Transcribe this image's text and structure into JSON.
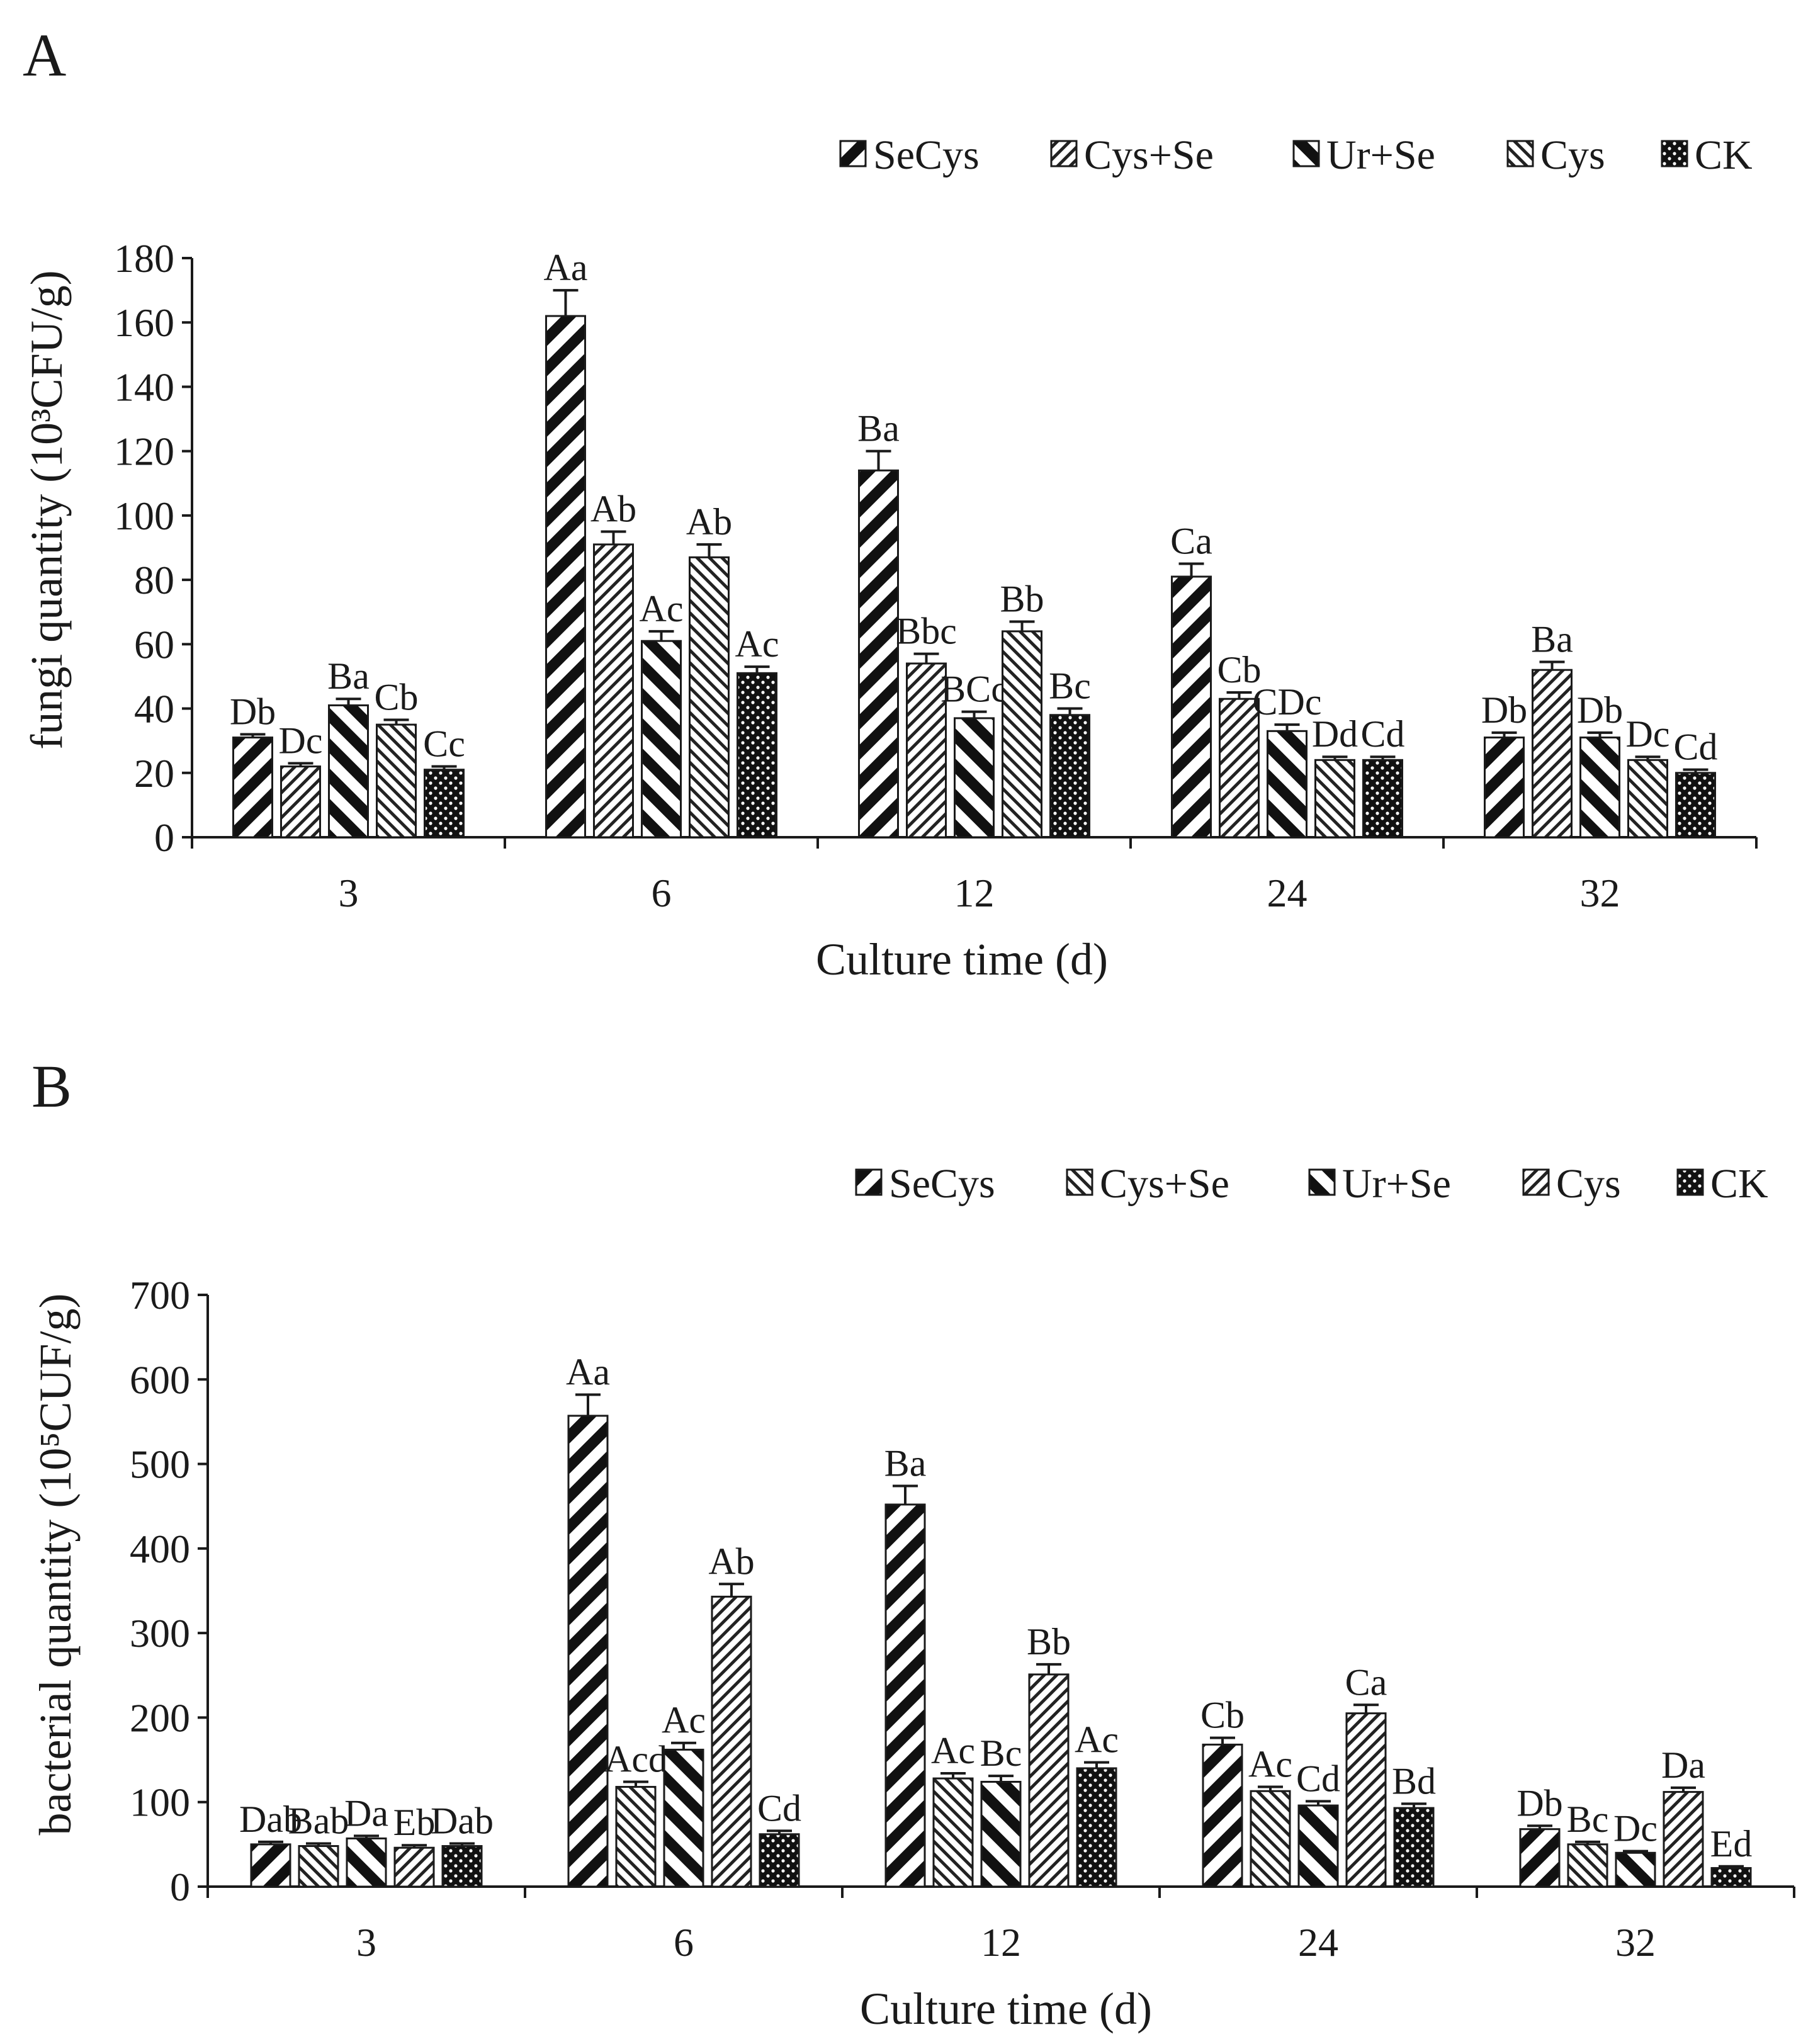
{
  "colors": {
    "ink": "#1a1a1a",
    "background": "#ffffff"
  },
  "chart_data": [
    {
      "type": "bar",
      "panel_label": "A",
      "xlabel": "Culture time (d)",
      "ylabel": "fungi quantity (10³CFU/g)",
      "categories": [
        "3",
        "6",
        "12",
        "24",
        "32"
      ],
      "ylim": [
        0,
        180
      ],
      "yticks": [
        0,
        20,
        40,
        60,
        80,
        100,
        120,
        140,
        160,
        180
      ],
      "grid": false,
      "legend_position": "top-right",
      "series": [
        {
          "name": "SeCys",
          "pattern": "diag-wide",
          "values": [
            31,
            162,
            114,
            81,
            31
          ],
          "errors": [
            1,
            8,
            6,
            4,
            1.5
          ],
          "labels": [
            "Db",
            "Aa",
            "Ba",
            "Ca",
            "Db"
          ]
        },
        {
          "name": "Cys+Se",
          "pattern": "diag-fine",
          "values": [
            22,
            91,
            54,
            43,
            52
          ],
          "errors": [
            1,
            4,
            3,
            2,
            2.5
          ],
          "labels": [
            "Dc",
            "Ab",
            "Bbc",
            "Cb",
            "Ba"
          ]
        },
        {
          "name": "Ur+Se",
          "pattern": "back-wide",
          "values": [
            41,
            61,
            37,
            33,
            31
          ],
          "errors": [
            2,
            3,
            2,
            2,
            1.5
          ],
          "labels": [
            "Ba",
            "Ac",
            "BCc",
            "CDc",
            "Db"
          ]
        },
        {
          "name": "Cys",
          "pattern": "back-fine",
          "values": [
            35,
            87,
            64,
            24,
            24
          ],
          "errors": [
            1.5,
            4,
            3,
            1,
            1
          ],
          "labels": [
            "Cb",
            "Ab",
            "Bb",
            "Dd",
            "Dc"
          ]
        },
        {
          "name": "CK",
          "pattern": "dots",
          "values": [
            21,
            51,
            38,
            24,
            20
          ],
          "errors": [
            1,
            2,
            2,
            1,
            1
          ],
          "labels": [
            "Cc",
            "Ac",
            "Bc",
            "Cd",
            "Cd"
          ]
        }
      ]
    },
    {
      "type": "bar",
      "panel_label": "B",
      "xlabel": "Culture time (d)",
      "ylabel": "bacterial quantity (10⁵CUF/g)",
      "categories": [
        "3",
        "6",
        "12",
        "24",
        "32"
      ],
      "ylim": [
        0,
        700
      ],
      "yticks": [
        0,
        100,
        200,
        300,
        400,
        500,
        600,
        700
      ],
      "grid": false,
      "legend_position": "top-right",
      "series": [
        {
          "name": "SeCys",
          "pattern": "diag-wide",
          "values": [
            50,
            557,
            452,
            168,
            68
          ],
          "errors": [
            3,
            25,
            22,
            8,
            4
          ],
          "labels": [
            "Dab",
            "Aa",
            "Ba",
            "Cb",
            "Db"
          ]
        },
        {
          "name": "Cys+Se",
          "pattern": "back-fine",
          "values": [
            48,
            118,
            128,
            113,
            50
          ],
          "errors": [
            3,
            6,
            6,
            5,
            3
          ],
          "labels": [
            "Bab",
            "Acd",
            "Ac",
            "Ac",
            "Bc"
          ]
        },
        {
          "name": "Ur+Se",
          "pattern": "back-wide",
          "values": [
            57,
            162,
            124,
            96,
            40
          ],
          "errors": [
            3,
            8,
            7,
            5,
            2
          ],
          "labels": [
            "Da",
            "Ac",
            "Bc",
            "Cd",
            "Dc"
          ]
        },
        {
          "name": "Cys",
          "pattern": "diag-fine",
          "values": [
            46,
            343,
            251,
            205,
            112
          ],
          "errors": [
            3,
            15,
            12,
            10,
            5
          ],
          "labels": [
            "Eb",
            "Ab",
            "Bb",
            "Ca",
            "Da"
          ]
        },
        {
          "name": "CK",
          "pattern": "dots",
          "values": [
            48,
            62,
            140,
            93,
            22
          ],
          "errors": [
            3,
            4,
            7,
            5,
            2
          ],
          "labels": [
            "Dab",
            "Cd",
            "Ac",
            "Bd",
            "Ed"
          ]
        }
      ]
    }
  ]
}
